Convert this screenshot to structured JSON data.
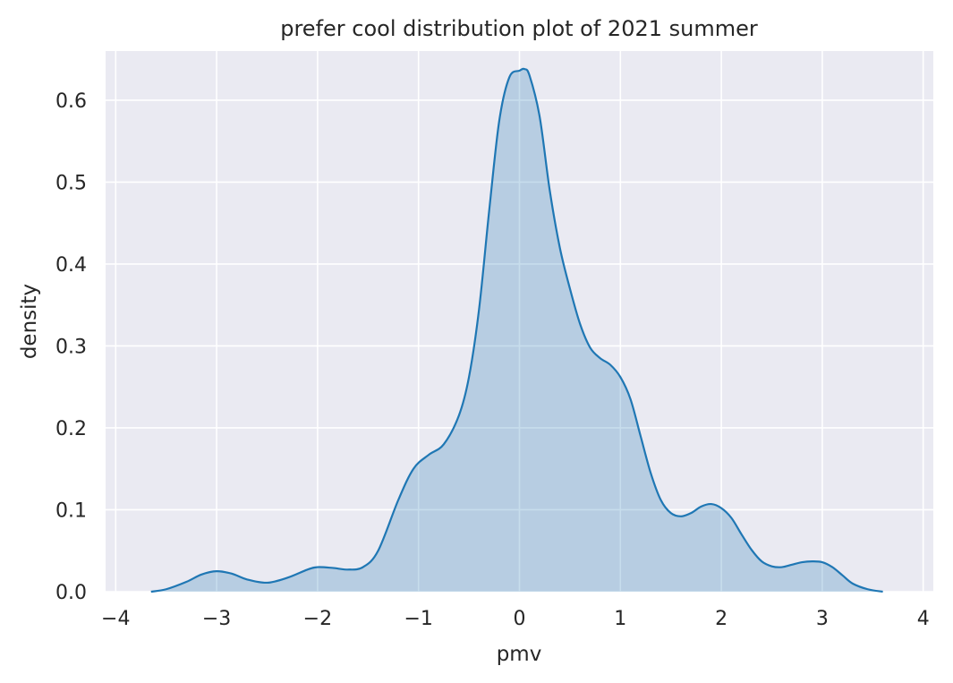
{
  "chart_data": {
    "type": "area",
    "title": "prefer cool distribution plot of 2021 summer",
    "xlabel": "pmv",
    "ylabel": "density",
    "xlim": [
      -4.1,
      4.1
    ],
    "ylim": [
      0,
      0.66
    ],
    "grid": true,
    "xticks": [
      -4,
      -3,
      -2,
      -1,
      0,
      1,
      2,
      3,
      4
    ],
    "xtick_labels": [
      "−4",
      "−3",
      "−2",
      "−1",
      "0",
      "1",
      "2",
      "3",
      "4"
    ],
    "yticks": [
      0.0,
      0.1,
      0.2,
      0.3,
      0.4,
      0.5,
      0.6
    ],
    "ytick_labels": [
      "0.0",
      "0.1",
      "0.2",
      "0.3",
      "0.4",
      "0.5",
      "0.6"
    ],
    "series": [
      {
        "color": "#1f77b4",
        "fill_opacity": 0.25,
        "x": [
          -3.65,
          -3.5,
          -3.3,
          -3.15,
          -3.0,
          -2.85,
          -2.7,
          -2.5,
          -2.3,
          -2.1,
          -2.0,
          -1.85,
          -1.7,
          -1.55,
          -1.4,
          -1.2,
          -1.05,
          -0.9,
          -0.75,
          -0.6,
          -0.5,
          -0.4,
          -0.3,
          -0.2,
          -0.1,
          0.0,
          0.05,
          0.1,
          0.2,
          0.3,
          0.4,
          0.5,
          0.6,
          0.7,
          0.8,
          0.9,
          1.0,
          1.1,
          1.2,
          1.3,
          1.4,
          1.5,
          1.6,
          1.7,
          1.8,
          1.9,
          2.0,
          2.1,
          2.2,
          2.3,
          2.4,
          2.5,
          2.6,
          2.7,
          2.8,
          2.9,
          3.0,
          3.1,
          3.2,
          3.3,
          3.45,
          3.6
        ],
        "y": [
          0.0,
          0.003,
          0.012,
          0.021,
          0.025,
          0.022,
          0.015,
          0.011,
          0.017,
          0.027,
          0.03,
          0.029,
          0.027,
          0.03,
          0.05,
          0.112,
          0.15,
          0.167,
          0.18,
          0.215,
          0.262,
          0.345,
          0.465,
          0.575,
          0.628,
          0.636,
          0.638,
          0.63,
          0.58,
          0.49,
          0.42,
          0.37,
          0.327,
          0.298,
          0.285,
          0.277,
          0.262,
          0.235,
          0.19,
          0.145,
          0.112,
          0.096,
          0.092,
          0.096,
          0.104,
          0.107,
          0.102,
          0.09,
          0.07,
          0.051,
          0.037,
          0.031,
          0.03,
          0.033,
          0.036,
          0.037,
          0.036,
          0.03,
          0.02,
          0.01,
          0.003,
          0.0
        ]
      }
    ]
  }
}
